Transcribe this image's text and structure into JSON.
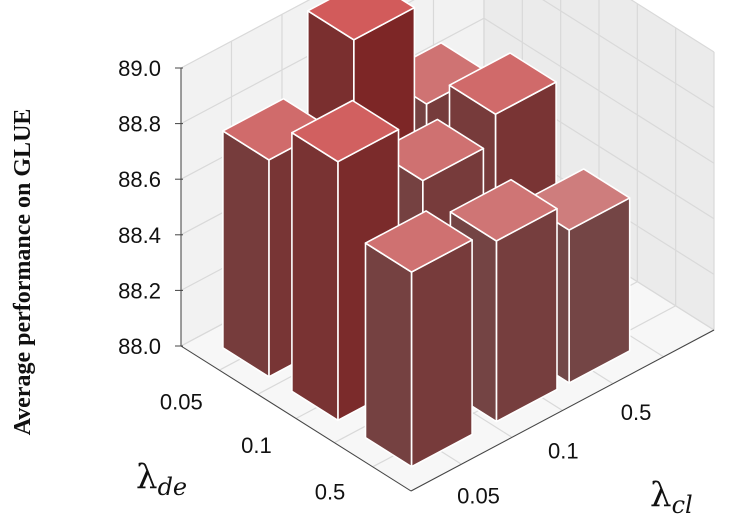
{
  "chart_data": {
    "type": "bar3d",
    "ylabel": "Average performance on GLUE",
    "x_axis": {
      "symbol": "λ",
      "subscript": "de",
      "ticks": [
        "0.05",
        "0.1",
        "0.5"
      ]
    },
    "y_axis": {
      "symbol": "λ",
      "subscript": "cl",
      "ticks": [
        "0.5",
        "0.1",
        "0.05"
      ]
    },
    "z_ticks": [
      "88.0",
      "88.2",
      "88.4",
      "88.6",
      "88.8",
      "89.0"
    ],
    "zlim": [
      88.0,
      89.0
    ],
    "grid": true,
    "bars": [
      {
        "lambda_de": "0.05",
        "lambda_cl": "0.05",
        "value": 88.78
      },
      {
        "lambda_de": "0.05",
        "lambda_cl": "0.1",
        "value": 89.05
      },
      {
        "lambda_de": "0.05",
        "lambda_cl": "0.5",
        "value": 88.68
      },
      {
        "lambda_de": "0.1",
        "lambda_cl": "0.05",
        "value": 88.93
      },
      {
        "lambda_de": "0.1",
        "lambda_cl": "0.1",
        "value": 88.7
      },
      {
        "lambda_de": "0.1",
        "lambda_cl": "0.5",
        "value": 88.8
      },
      {
        "lambda_de": "0.5",
        "lambda_cl": "0.05",
        "value": 88.7
      },
      {
        "lambda_de": "0.5",
        "lambda_cl": "0.1",
        "value": 88.65
      },
      {
        "lambda_de": "0.5",
        "lambda_cl": "0.5",
        "value": 88.55
      }
    ],
    "colors": {
      "low": "#6b6262",
      "high": "#7d2626",
      "top_low": "#c9a6a6",
      "top_high": "#d25b5b",
      "edge": "#ffffff",
      "grid": "#d9d9d9",
      "pane": "#f2f2f2"
    }
  }
}
